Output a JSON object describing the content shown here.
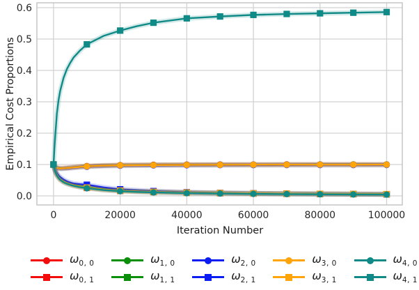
{
  "figure": {
    "background": "#ffffff",
    "tick_color": "#262626",
    "label_color": "#1a1a1a",
    "grid_color": "#d2d2d2",
    "spine_color": "#c6c6c6"
  },
  "chart_data": {
    "type": "line",
    "title": "",
    "xlabel": "Iteration Number",
    "ylabel": "Empirical Cost Proportions",
    "xlim": [
      -5000,
      104700
    ],
    "ylim": [
      -0.0289,
      0.6156
    ],
    "grid": true,
    "legend_position": "below",
    "marker_interval": 10000,
    "x_ticks": {
      "values": [
        0,
        20000,
        40000,
        60000,
        80000,
        100000
      ],
      "labels": [
        "0",
        "20000",
        "40000",
        "60000",
        "80000",
        "100000"
      ]
    },
    "y_ticks": {
      "values": [
        0.0,
        0.1,
        0.2,
        0.3,
        0.4,
        0.5,
        0.6
      ],
      "labels": [
        "0.0",
        "0.1",
        "0.2",
        "0.3",
        "0.4",
        "0.5",
        "0.6"
      ]
    },
    "x": [
      0,
      250,
      500,
      1000,
      1500,
      2000,
      3000,
      4000,
      5000,
      6000,
      8000,
      10000,
      15000,
      20000,
      25000,
      30000,
      40000,
      50000,
      60000,
      70000,
      80000,
      90000,
      100000
    ],
    "series": [
      {
        "id": "w0-0",
        "legend_base": "ω",
        "legend_sub": "0, 0",
        "color": "#f20c0c",
        "marker": "circle",
        "values": [
          0.1,
          0.096,
          0.0935,
          0.0905,
          0.089,
          0.0885,
          0.0888,
          0.0895,
          0.0905,
          0.0915,
          0.0935,
          0.095,
          0.0972,
          0.0982,
          0.0988,
          0.0992,
          0.0997,
          0.1,
          0.1001,
          0.1002,
          0.1003,
          0.1003,
          0.1004
        ]
      },
      {
        "id": "w0-1",
        "legend_base": "ω",
        "legend_sub": "0, 1",
        "color": "#f20c0c",
        "marker": "square",
        "values": [
          0.1,
          0.087,
          0.078,
          0.066,
          0.058,
          0.052,
          0.0445,
          0.0395,
          0.036,
          0.033,
          0.0285,
          0.0255,
          0.0195,
          0.016,
          0.0138,
          0.0122,
          0.01,
          0.0085,
          0.0075,
          0.0066,
          0.006,
          0.0055,
          0.005
        ]
      },
      {
        "id": "w1-0",
        "legend_base": "ω",
        "legend_sub": "1, 0",
        "color": "#0b8f0b",
        "marker": "circle",
        "values": [
          0.1,
          0.0953,
          0.0928,
          0.0898,
          0.0883,
          0.0878,
          0.0881,
          0.0888,
          0.0898,
          0.0908,
          0.0928,
          0.0943,
          0.0965,
          0.0975,
          0.0981,
          0.0985,
          0.099,
          0.0993,
          0.0995,
          0.0996,
          0.0997,
          0.0997,
          0.0998
        ]
      },
      {
        "id": "w1-1",
        "legend_base": "ω",
        "legend_sub": "1, 1",
        "color": "#0b8f0b",
        "marker": "square",
        "values": [
          0.1,
          0.088,
          0.08,
          0.069,
          0.061,
          0.055,
          0.047,
          0.042,
          0.0385,
          0.0355,
          0.031,
          0.028,
          0.0215,
          0.0175,
          0.015,
          0.0132,
          0.0107,
          0.0091,
          0.008,
          0.007,
          0.0063,
          0.0058,
          0.0053
        ]
      },
      {
        "id": "w2-0",
        "legend_base": "ω",
        "legend_sub": "2, 0",
        "color": "#0b1df2",
        "marker": "circle",
        "values": [
          0.1,
          0.094,
          0.0915,
          0.0885,
          0.087,
          0.0865,
          0.0868,
          0.0875,
          0.0885,
          0.0895,
          0.0915,
          0.093,
          0.0952,
          0.0962,
          0.0968,
          0.0972,
          0.0977,
          0.098,
          0.0982,
          0.0983,
          0.0984,
          0.0984,
          0.0985
        ]
      },
      {
        "id": "w2-1",
        "legend_base": "ω",
        "legend_sub": "2, 1",
        "color": "#0b1df2",
        "marker": "square",
        "values": [
          0.1,
          0.0895,
          0.082,
          0.072,
          0.065,
          0.06,
          0.052,
          0.0465,
          0.0425,
          0.0395,
          0.037,
          0.0355,
          0.027,
          0.021,
          0.0178,
          0.0152,
          0.0117,
          0.0096,
          0.0082,
          0.0071,
          0.0064,
          0.0058,
          0.0053
        ]
      },
      {
        "id": "w3-0",
        "legend_base": "ω",
        "legend_sub": "3, 0",
        "color": "#ffa40a",
        "marker": "circle",
        "values": [
          0.1,
          0.095,
          0.0925,
          0.0895,
          0.088,
          0.0875,
          0.0878,
          0.0885,
          0.0895,
          0.0905,
          0.0925,
          0.094,
          0.0962,
          0.0972,
          0.0978,
          0.0982,
          0.0987,
          0.099,
          0.0992,
          0.0993,
          0.0994,
          0.0994,
          0.0995
        ]
      },
      {
        "id": "w3-1",
        "legend_base": "ω",
        "legend_sub": "3, 1",
        "color": "#ffa40a",
        "marker": "square",
        "values": [
          0.1,
          0.0875,
          0.079,
          0.067,
          0.059,
          0.053,
          0.0455,
          0.0405,
          0.037,
          0.034,
          0.0295,
          0.0265,
          0.0205,
          0.017,
          0.0147,
          0.013,
          0.0107,
          0.0092,
          0.0081,
          0.0072,
          0.0066,
          0.0061,
          0.0056
        ]
      },
      {
        "id": "w4-0",
        "legend_base": "ω",
        "legend_sub": "4, 0",
        "color": "#0f8a87",
        "marker": "circle",
        "values": [
          0.1,
          0.086,
          0.077,
          0.065,
          0.057,
          0.051,
          0.0435,
          0.0385,
          0.035,
          0.032,
          0.0275,
          0.0245,
          0.0185,
          0.015,
          0.0128,
          0.0112,
          0.009,
          0.0076,
          0.0066,
          0.0058,
          0.0052,
          0.0047,
          0.0043
        ]
      },
      {
        "id": "w4-1",
        "legend_base": "ω",
        "legend_sub": "4, 1",
        "color": "#0f8a87",
        "marker": "square",
        "values": [
          0.1,
          0.15,
          0.19,
          0.262,
          0.305,
          0.335,
          0.376,
          0.404,
          0.424,
          0.441,
          0.464,
          0.483,
          0.51,
          0.527,
          0.541,
          0.552,
          0.566,
          0.572,
          0.577,
          0.58,
          0.582,
          0.584,
          0.586
        ]
      }
    ]
  }
}
